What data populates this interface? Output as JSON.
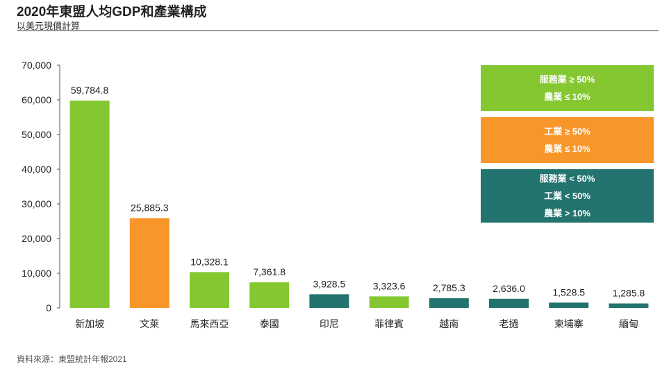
{
  "header": {
    "title": "2020年東盟人均GDP和產業構成",
    "subtitle": "以美元現價計算"
  },
  "source": "資料來源：東盟統計年報2021",
  "colors": {
    "services": "#84C731",
    "industry": "#F8962A",
    "other": "#23736F",
    "axis": "#555555"
  },
  "legend": [
    {
      "color_key": "services",
      "lines": [
        "服務業 ≥ 50%",
        "農業 ≤ 10%"
      ]
    },
    {
      "color_key": "industry",
      "lines": [
        "工業 ≥ 50%",
        "農業 ≤ 10%"
      ]
    },
    {
      "color_key": "other",
      "lines": [
        "服務業 < 50%",
        "工業 < 50%",
        "農業 > 10%"
      ]
    }
  ],
  "chart_data": {
    "type": "bar",
    "title": "2020年東盟人均GDP和產業構成",
    "subtitle": "以美元現價計算",
    "xlabel": "",
    "ylabel": "",
    "ylim": [
      0,
      70000
    ],
    "yticks": [
      0,
      10000,
      20000,
      30000,
      40000,
      50000,
      60000,
      70000
    ],
    "ytick_labels": [
      "0",
      "10,000",
      "20,000",
      "30,000",
      "40,000",
      "50,000",
      "60,000",
      "70,000"
    ],
    "grid": false,
    "legend_position": "top-right",
    "categories": [
      "新加坡",
      "文萊",
      "馬來西亞",
      "泰國",
      "印尼",
      "菲律賓",
      "越南",
      "老撾",
      "柬埔寨",
      "緬甸"
    ],
    "values": [
      59784.8,
      25885.3,
      10328.1,
      7361.8,
      3928.5,
      3323.6,
      2785.3,
      2636.0,
      1528.5,
      1285.8
    ],
    "value_labels": [
      "59,784.8",
      "25,885.3",
      "10,328.1",
      "7,361.8",
      "3,928.5",
      "3,323.6",
      "2,785.3",
      "2,636.0",
      "1,528.5",
      "1,285.8"
    ],
    "bar_groups": [
      "services",
      "industry",
      "services",
      "services",
      "other",
      "services",
      "other",
      "other",
      "other",
      "other"
    ]
  }
}
